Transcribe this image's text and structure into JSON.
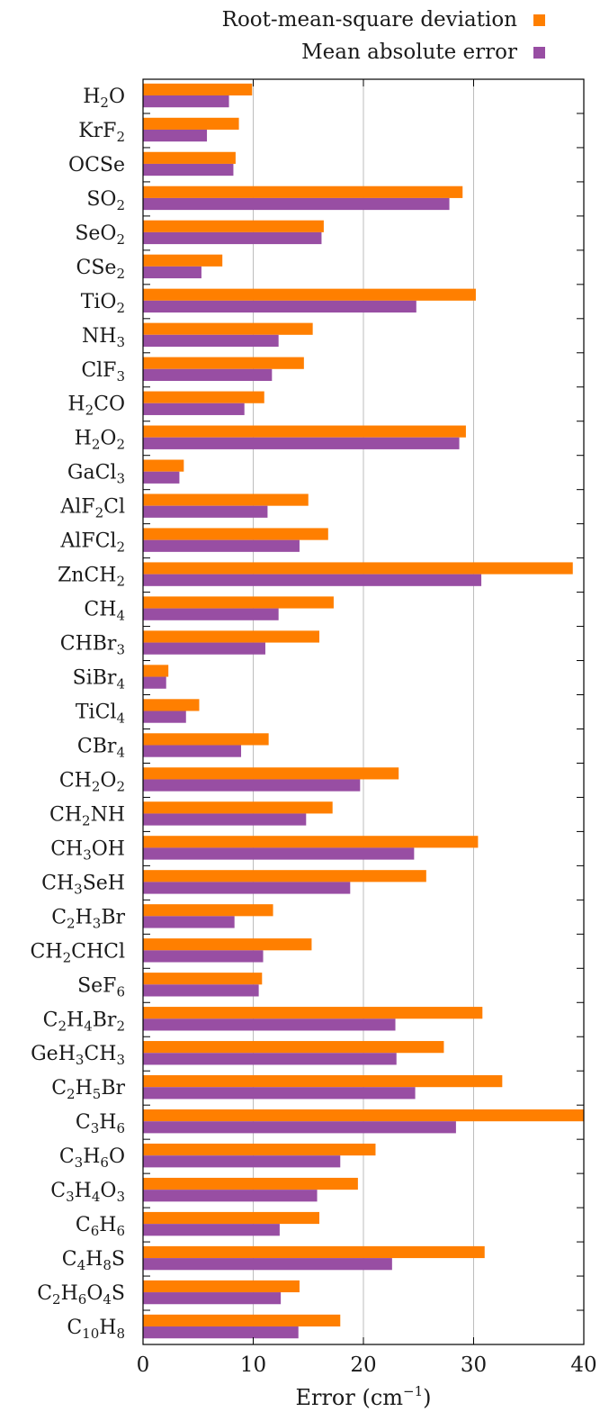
{
  "chart_data": {
    "type": "bar",
    "orientation": "horizontal",
    "categories": [
      {
        "parts": [
          [
            "H",
            ""
          ],
          [
            "2",
            "sub"
          ],
          [
            "O",
            ""
          ]
        ]
      },
      {
        "parts": [
          [
            "KrF",
            ""
          ],
          [
            "2",
            "sub"
          ]
        ]
      },
      {
        "parts": [
          [
            "OCSe",
            ""
          ]
        ]
      },
      {
        "parts": [
          [
            "SO",
            ""
          ],
          [
            "2",
            "sub"
          ]
        ]
      },
      {
        "parts": [
          [
            "SeO",
            ""
          ],
          [
            "2",
            "sub"
          ]
        ]
      },
      {
        "parts": [
          [
            "CSe",
            ""
          ],
          [
            "2",
            "sub"
          ]
        ]
      },
      {
        "parts": [
          [
            "TiO",
            ""
          ],
          [
            "2",
            "sub"
          ]
        ]
      },
      {
        "parts": [
          [
            "NH",
            ""
          ],
          [
            "3",
            "sub"
          ]
        ]
      },
      {
        "parts": [
          [
            "ClF",
            ""
          ],
          [
            "3",
            "sub"
          ]
        ]
      },
      {
        "parts": [
          [
            "H",
            ""
          ],
          [
            "2",
            "sub"
          ],
          [
            "CO",
            ""
          ]
        ]
      },
      {
        "parts": [
          [
            "H",
            ""
          ],
          [
            "2",
            "sub"
          ],
          [
            "O",
            ""
          ],
          [
            "2",
            "sub"
          ]
        ]
      },
      {
        "parts": [
          [
            "GaCl",
            ""
          ],
          [
            "3",
            "sub"
          ]
        ]
      },
      {
        "parts": [
          [
            "AlF",
            ""
          ],
          [
            "2",
            "sub"
          ],
          [
            "Cl",
            ""
          ]
        ]
      },
      {
        "parts": [
          [
            "AlFCl",
            ""
          ],
          [
            "2",
            "sub"
          ]
        ]
      },
      {
        "parts": [
          [
            "ZnCH",
            ""
          ],
          [
            "2",
            "sub"
          ]
        ]
      },
      {
        "parts": [
          [
            "CH",
            ""
          ],
          [
            "4",
            "sub"
          ]
        ]
      },
      {
        "parts": [
          [
            "CHBr",
            ""
          ],
          [
            "3",
            "sub"
          ]
        ]
      },
      {
        "parts": [
          [
            "SiBr",
            ""
          ],
          [
            "4",
            "sub"
          ]
        ]
      },
      {
        "parts": [
          [
            "TiCl",
            ""
          ],
          [
            "4",
            "sub"
          ]
        ]
      },
      {
        "parts": [
          [
            "CBr",
            ""
          ],
          [
            "4",
            "sub"
          ]
        ]
      },
      {
        "parts": [
          [
            "CH",
            ""
          ],
          [
            "2",
            "sub"
          ],
          [
            "O",
            ""
          ],
          [
            "2",
            "sub"
          ]
        ]
      },
      {
        "parts": [
          [
            "CH",
            ""
          ],
          [
            "2",
            "sub"
          ],
          [
            "NH",
            ""
          ]
        ]
      },
      {
        "parts": [
          [
            "CH",
            ""
          ],
          [
            "3",
            "sub"
          ],
          [
            "OH",
            ""
          ]
        ]
      },
      {
        "parts": [
          [
            "CH",
            ""
          ],
          [
            "3",
            "sub"
          ],
          [
            "SeH",
            ""
          ]
        ]
      },
      {
        "parts": [
          [
            "C",
            ""
          ],
          [
            "2",
            "sub"
          ],
          [
            "H",
            ""
          ],
          [
            "3",
            "sub"
          ],
          [
            "Br",
            ""
          ]
        ]
      },
      {
        "parts": [
          [
            "CH",
            ""
          ],
          [
            "2",
            "sub"
          ],
          [
            "CHCl",
            ""
          ]
        ]
      },
      {
        "parts": [
          [
            "SeF",
            ""
          ],
          [
            "6",
            "sub"
          ]
        ]
      },
      {
        "parts": [
          [
            "C",
            ""
          ],
          [
            "2",
            "sub"
          ],
          [
            "H",
            ""
          ],
          [
            "4",
            "sub"
          ],
          [
            "Br",
            ""
          ],
          [
            "2",
            "sub"
          ]
        ]
      },
      {
        "parts": [
          [
            "GeH",
            ""
          ],
          [
            "3",
            "sub"
          ],
          [
            "CH",
            ""
          ],
          [
            "3",
            "sub"
          ]
        ]
      },
      {
        "parts": [
          [
            "C",
            ""
          ],
          [
            "2",
            "sub"
          ],
          [
            "H",
            ""
          ],
          [
            "5",
            "sub"
          ],
          [
            "Br",
            ""
          ]
        ]
      },
      {
        "parts": [
          [
            "C",
            ""
          ],
          [
            "3",
            "sub"
          ],
          [
            "H",
            ""
          ],
          [
            "6",
            "sub"
          ]
        ]
      },
      {
        "parts": [
          [
            "C",
            ""
          ],
          [
            "3",
            "sub"
          ],
          [
            "H",
            ""
          ],
          [
            "6",
            "sub"
          ],
          [
            "O",
            ""
          ]
        ]
      },
      {
        "parts": [
          [
            "C",
            ""
          ],
          [
            "3",
            "sub"
          ],
          [
            "H",
            ""
          ],
          [
            "4",
            "sub"
          ],
          [
            "O",
            ""
          ],
          [
            "3",
            "sub"
          ]
        ]
      },
      {
        "parts": [
          [
            "C",
            ""
          ],
          [
            "6",
            "sub"
          ],
          [
            "H",
            ""
          ],
          [
            "6",
            "sub"
          ]
        ]
      },
      {
        "parts": [
          [
            "C",
            ""
          ],
          [
            "4",
            "sub"
          ],
          [
            "H",
            ""
          ],
          [
            "8",
            "sub"
          ],
          [
            "S",
            ""
          ]
        ]
      },
      {
        "parts": [
          [
            "C",
            ""
          ],
          [
            "2",
            "sub"
          ],
          [
            "H",
            ""
          ],
          [
            "6",
            "sub"
          ],
          [
            "O",
            ""
          ],
          [
            "4",
            "sub"
          ],
          [
            "S",
            ""
          ]
        ]
      },
      {
        "parts": [
          [
            "C",
            ""
          ],
          [
            "10",
            "sub"
          ],
          [
            "H",
            ""
          ],
          [
            "8",
            "sub"
          ]
        ]
      }
    ],
    "series": [
      {
        "name": "Root-mean-square deviation",
        "color": "#ff7f00",
        "values": [
          9.9,
          8.7,
          8.4,
          29.0,
          16.4,
          7.2,
          30.2,
          15.4,
          14.6,
          11.0,
          29.3,
          3.7,
          15.0,
          16.8,
          39.0,
          17.3,
          16.0,
          2.3,
          5.1,
          11.4,
          23.2,
          17.2,
          30.4,
          25.7,
          11.8,
          15.3,
          10.8,
          30.8,
          27.3,
          32.6,
          40.0,
          21.1,
          19.5,
          16.0,
          31.0,
          14.2,
          17.9
        ]
      },
      {
        "name": "Mean absolute error",
        "color": "#984ea3",
        "values": [
          7.8,
          5.8,
          8.2,
          27.8,
          16.2,
          5.3,
          24.8,
          12.3,
          11.7,
          9.2,
          28.7,
          3.3,
          11.3,
          14.2,
          30.7,
          12.3,
          11.1,
          2.1,
          3.9,
          8.9,
          19.7,
          14.8,
          24.6,
          18.8,
          8.3,
          10.9,
          10.5,
          22.9,
          23.0,
          24.7,
          28.4,
          17.9,
          15.8,
          12.4,
          22.6,
          12.5,
          14.1
        ]
      }
    ],
    "xlabel": {
      "base": "Error (cm",
      "sup": "−1",
      "close": ")"
    },
    "xlim": [
      0,
      40
    ],
    "xticks": [
      "0",
      "10",
      "20",
      "30",
      "40"
    ],
    "xtick_values": [
      0,
      10,
      20,
      30,
      40
    ],
    "grid": "vertical",
    "legend_position": "top-right"
  }
}
